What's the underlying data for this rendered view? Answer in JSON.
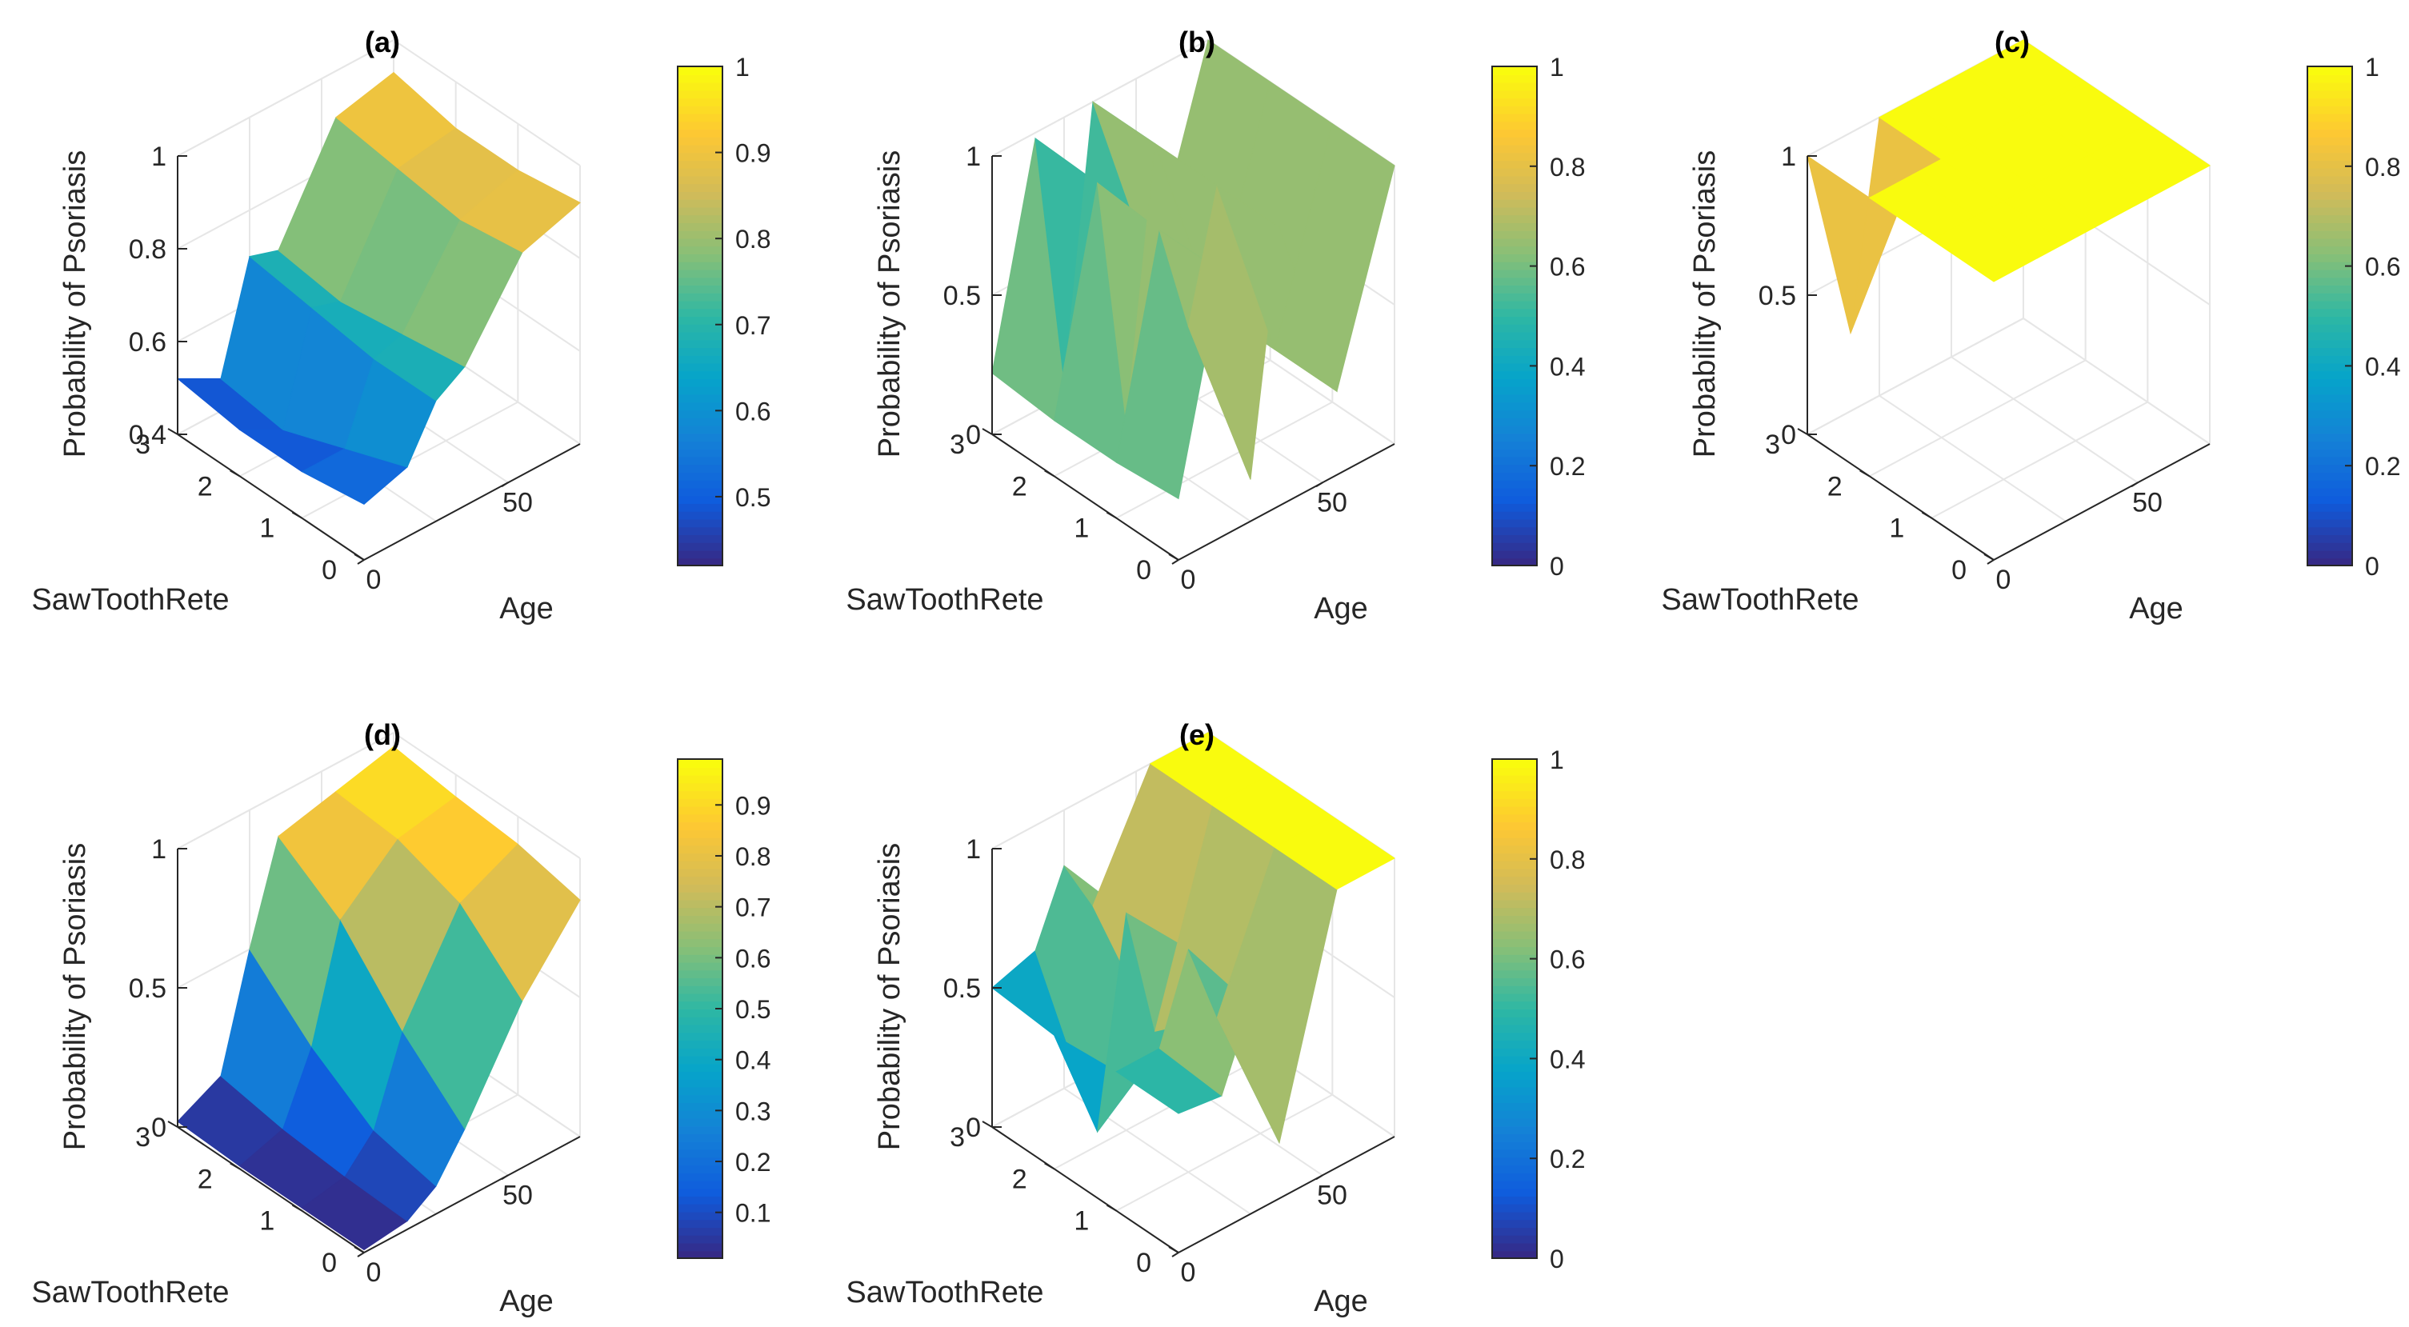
{
  "figure": {
    "description_label": "Probability of Psoriasis surfaces",
    "colors": {
      "parula": [
        "#352a87",
        "#0f5cdd",
        "#1481d6",
        "#06a4ca",
        "#2eb7a4",
        "#87bf77",
        "#d1bb59",
        "#fec832",
        "#f9fb0e"
      ],
      "axis": "#262626",
      "grid": "#e6e6e6",
      "background": "#ffffff"
    }
  },
  "chart_data": [
    {
      "type": "surface",
      "panel": "(a)",
      "title": "(a)",
      "xlabel": "Age",
      "ylabel": "SawToothRete",
      "zlabel": "Probability of Psoriasis",
      "xlim": [
        0,
        75
      ],
      "xticks": [
        "0",
        "50"
      ],
      "ylim": [
        0,
        3
      ],
      "yticks": [
        "0",
        "1",
        "2",
        "3"
      ],
      "zlim": [
        0.4,
        1
      ],
      "zticks": [
        "0.4",
        "0.6",
        "0.8",
        "1"
      ],
      "colorbar": {
        "min": 0.42,
        "max": 1,
        "ticks": [
          "0.5",
          "0.6",
          "0.7",
          "0.8",
          "0.9",
          "1"
        ],
        "tick_values": [
          0.5,
          0.6,
          0.7,
          0.8,
          0.9,
          1
        ]
      },
      "age_breaks": [
        0,
        15,
        25,
        35,
        55,
        75
      ],
      "rete_values": [
        0,
        1,
        2,
        3
      ],
      "z_values": [
        [
          0.52,
          0.55,
          0.66,
          0.7,
          0.88,
          0.92
        ],
        [
          0.5,
          0.5,
          0.66,
          0.68,
          0.86,
          0.9
        ],
        [
          0.5,
          0.45,
          0.68,
          0.66,
          0.88,
          0.9
        ],
        [
          0.52,
          0.47,
          0.7,
          0.68,
          0.9,
          0.93
        ]
      ]
    },
    {
      "type": "surface",
      "panel": "(b)",
      "title": "(b)",
      "xlabel": "Age",
      "ylabel": "SawToothRete",
      "zlabel": "Probability of Psoriasis",
      "xlim": [
        0,
        75
      ],
      "xticks": [
        "0",
        "50"
      ],
      "ylim": [
        0,
        3
      ],
      "yticks": [
        "0",
        "1",
        "2",
        "3"
      ],
      "zlim": [
        0,
        1
      ],
      "zticks": [
        "0",
        "0.5",
        "1"
      ],
      "colorbar": {
        "min": 0,
        "max": 1,
        "ticks": [
          "0",
          "0.2",
          "0.4",
          "0.6",
          "0.8",
          "1"
        ],
        "tick_values": [
          0,
          0.2,
          0.4,
          0.6,
          0.8,
          1
        ]
      },
      "age_breaks": [
        0,
        15,
        25,
        35,
        55,
        75
      ],
      "rete_values": [
        0,
        1,
        2,
        3
      ],
      "z_values": [
        [
          0.22,
          0.95,
          0.15,
          1.0,
          0.3,
          1.0
        ],
        [
          0.2,
          0.95,
          0.55,
          1.0,
          0.3,
          1.0
        ],
        [
          0.2,
          0.97,
          0.05,
          1.0,
          0.3,
          1.0
        ],
        [
          0.22,
          0.98,
          0.05,
          1.0,
          0.3,
          1.0
        ]
      ]
    },
    {
      "type": "surface",
      "panel": "(c)",
      "title": "(c)",
      "xlabel": "Age",
      "ylabel": "SawToothRete",
      "zlabel": "Probability of Psoriasis",
      "xlim": [
        0,
        75
      ],
      "xticks": [
        "0",
        "50"
      ],
      "ylim": [
        0,
        3
      ],
      "yticks": [
        "0",
        "1",
        "2",
        "3"
      ],
      "zlim": [
        0,
        1
      ],
      "zticks": [
        "0",
        "0.5",
        "1"
      ],
      "colorbar": {
        "min": 0,
        "max": 1,
        "ticks": [
          "0",
          "0.2",
          "0.4",
          "0.6",
          "0.8",
          "1"
        ],
        "tick_values": [
          0,
          0.2,
          0.4,
          0.6,
          0.8,
          1
        ]
      },
      "age_breaks": [
        0,
        15,
        25,
        35,
        55,
        75
      ],
      "rete_values": [
        0,
        1,
        2,
        3
      ],
      "z_values": [
        [
          1,
          1,
          1,
          1,
          1,
          1
        ],
        [
          1,
          1,
          1,
          1,
          1,
          1
        ],
        [
          1,
          1,
          1,
          1,
          1,
          1
        ],
        [
          1,
          0.28,
          1,
          1,
          1,
          1
        ]
      ]
    },
    {
      "type": "surface",
      "panel": "(d)",
      "title": "(d)",
      "xlabel": "Age",
      "ylabel": "SawToothRete",
      "zlabel": "Probability of Psoriasis",
      "xlim": [
        0,
        75
      ],
      "xticks": [
        "0",
        "50"
      ],
      "ylim": [
        0,
        3
      ],
      "yticks": [
        "0",
        "1",
        "2",
        "3"
      ],
      "zlim": [
        0,
        1
      ],
      "zticks": [
        "0",
        "0.5",
        "1"
      ],
      "colorbar": {
        "min": 0.01,
        "max": 0.99,
        "ticks": [
          "0.1",
          "0.2",
          "0.3",
          "0.4",
          "0.5",
          "0.6",
          "0.7",
          "0.8",
          "0.9"
        ],
        "tick_values": [
          0.1,
          0.2,
          0.3,
          0.4,
          0.5,
          0.6,
          0.7,
          0.8,
          0.9
        ]
      },
      "age_breaks": [
        0,
        15,
        25,
        35,
        55,
        75
      ],
      "rete_values": [
        0,
        1,
        2,
        3
      ],
      "z_values": [
        [
          0.01,
          0.03,
          0.1,
          0.25,
          0.6,
          0.85
        ],
        [
          0.01,
          0.04,
          0.15,
          0.45,
          0.8,
          0.9
        ],
        [
          0.01,
          0.06,
          0.3,
          0.7,
          0.88,
          0.92
        ],
        [
          0.02,
          0.1,
          0.5,
          0.85,
          0.9,
          0.95
        ]
      ]
    },
    {
      "type": "surface",
      "panel": "(e)",
      "title": "(e)",
      "xlabel": "Age",
      "ylabel": "SawToothRete",
      "zlabel": "Probability of Psoriasis",
      "xlim": [
        0,
        75
      ],
      "xticks": [
        "0",
        "50"
      ],
      "ylim": [
        0,
        3
      ],
      "yticks": [
        "0",
        "1",
        "2",
        "3"
      ],
      "zlim": [
        0,
        1
      ],
      "zticks": [
        "0",
        "0.5",
        "1"
      ],
      "colorbar": {
        "min": 0,
        "max": 1,
        "ticks": [
          "0",
          "0.2",
          "0.4",
          "0.6",
          "0.8",
          "1"
        ],
        "tick_values": [
          0,
          0.2,
          0.4,
          0.6,
          0.8,
          1
        ]
      },
      "age_breaks": [
        0,
        15,
        25,
        35,
        55,
        75
      ],
      "rete_values": [
        0,
        1,
        2,
        3
      ],
      "z_values": [
        [
          0.5,
          0.48,
          0.75,
          0.2,
          1.0,
          1.0
        ],
        [
          0.5,
          0.5,
          0.8,
          0.5,
          1.0,
          1.0
        ],
        [
          0.48,
          0.05,
          0.78,
          0.3,
          1.0,
          1.0
        ],
        [
          0.5,
          0.55,
          0.8,
          0.6,
          1.0,
          1.0
        ]
      ]
    }
  ]
}
